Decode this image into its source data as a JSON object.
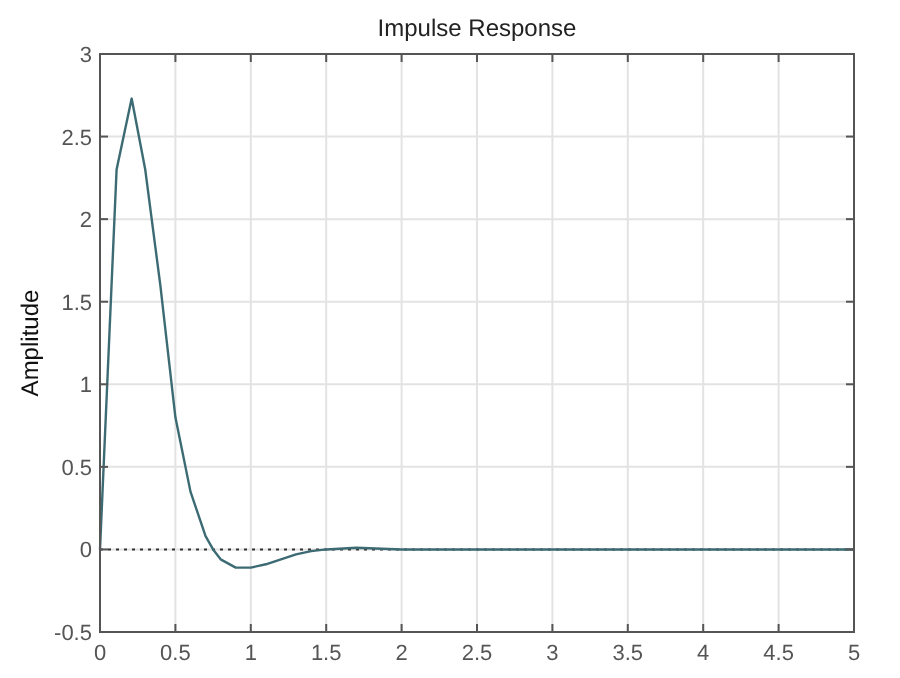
{
  "chart_data": {
    "type": "line",
    "title": "Impulse Response",
    "ylabel": "Amplitude",
    "x": [
      0,
      0.11,
      0.21,
      0.3,
      0.4,
      0.5,
      0.6,
      0.7,
      0.75,
      0.8,
      0.9,
      1.0,
      1.1,
      1.2,
      1.3,
      1.4,
      1.5,
      1.7,
      2,
      3,
      4,
      5
    ],
    "series": [
      {
        "color": "#3d6b73",
        "values": [
          0,
          2.3,
          2.73,
          2.3,
          1.6,
          0.8,
          0.35,
          0.08,
          0,
          -0.06,
          -0.11,
          -0.11,
          -0.09,
          -0.06,
          -0.03,
          -0.01,
          0,
          0.01,
          0,
          0,
          0,
          0
        ]
      }
    ],
    "xlim": [
      0,
      5
    ],
    "xticks": [
      0,
      0.5,
      1,
      1.5,
      2,
      2.5,
      3,
      3.5,
      4,
      4.5,
      5
    ],
    "ylim": [
      -0.5,
      3
    ],
    "yticks": [
      -0.5,
      0,
      0.5,
      1,
      1.5,
      2,
      2.5,
      3
    ],
    "ref_lines": [
      {
        "axis": "y",
        "value": 0,
        "color": "#333333",
        "line_style": "dotted"
      }
    ],
    "grid": true,
    "line_style": "solid",
    "marker": "none"
  }
}
